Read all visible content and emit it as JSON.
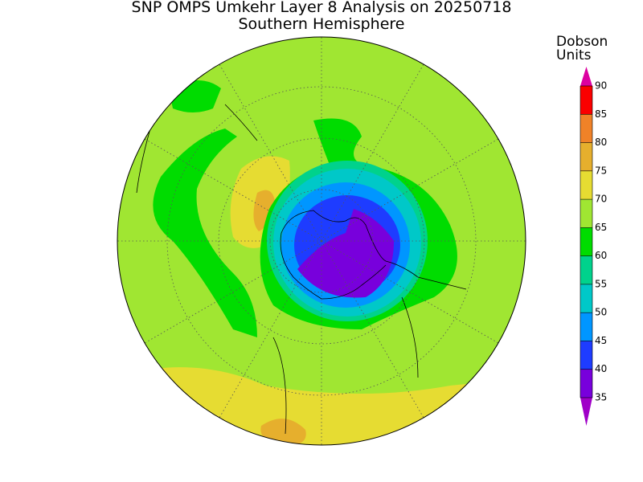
{
  "title": "SNP OMPS Umkehr Layer 8 Analysis on 20250718",
  "subtitle": "Southern Hemisphere",
  "colorbar": {
    "title": [
      "Dobson",
      "Units"
    ],
    "ticks": [
      35,
      40,
      45,
      50,
      55,
      60,
      65,
      70,
      75,
      80,
      85,
      90
    ],
    "under_color": "#a000c8",
    "colors": [
      "#7800dc",
      "#1e3cff",
      "#0096ff",
      "#00c8c8",
      "#00d28c",
      "#00dc00",
      "#a0e632",
      "#e6dc32",
      "#e6af2d",
      "#f08228",
      "#fa0000"
    ],
    "over_color": "#dc00a0"
  }
}
